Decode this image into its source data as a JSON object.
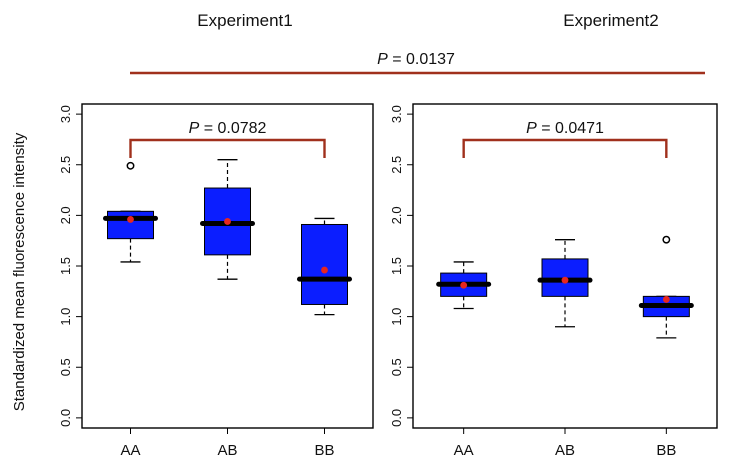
{
  "ylabel": "Standardized mean fluorescence intensity",
  "overall_comparison": {
    "label": "P = 0.0137",
    "p_value": 0.0137
  },
  "colors": {
    "box": "#0b1eff",
    "median": "#000000",
    "mean": "#e8261f",
    "bracket": "#a0301c"
  },
  "chart_data": [
    {
      "type": "box",
      "title": "Experiment1",
      "categories": [
        "AA",
        "AB",
        "BB"
      ],
      "yticks": [
        "0.0",
        "0.5",
        "1.0",
        "1.5",
        "2.0",
        "2.5",
        "3.0"
      ],
      "ylim": [
        -0.1,
        3.1
      ],
      "boxes": [
        {
          "category": "AA",
          "whisker_low": 1.54,
          "q1": 1.77,
          "median": 1.97,
          "q3": 2.04,
          "whisker_high": 2.04,
          "mean": 1.96,
          "outliers": [
            2.49
          ]
        },
        {
          "category": "AB",
          "whisker_low": 1.37,
          "q1": 1.61,
          "median": 1.92,
          "q3": 2.27,
          "whisker_high": 2.55,
          "mean": 1.94,
          "outliers": []
        },
        {
          "category": "BB",
          "whisker_low": 1.02,
          "q1": 1.12,
          "median": 1.37,
          "q3": 1.91,
          "whisker_high": 1.97,
          "mean": 1.46,
          "outliers": []
        }
      ],
      "comparison": {
        "label": "P = 0.0782",
        "p_value": 0.0782,
        "from": "AA",
        "to": "BB"
      }
    },
    {
      "type": "box",
      "title": "Experiment2",
      "categories": [
        "AA",
        "AB",
        "BB"
      ],
      "yticks": [
        "0.0",
        "0.5",
        "1.0",
        "1.5",
        "2.0",
        "2.5",
        "3.0"
      ],
      "ylim": [
        -0.1,
        3.1
      ],
      "boxes": [
        {
          "category": "AA",
          "whisker_low": 1.08,
          "q1": 1.2,
          "median": 1.32,
          "q3": 1.43,
          "whisker_high": 1.54,
          "mean": 1.31,
          "outliers": []
        },
        {
          "category": "AB",
          "whisker_low": 0.9,
          "q1": 1.2,
          "median": 1.36,
          "q3": 1.57,
          "whisker_high": 1.76,
          "mean": 1.36,
          "outliers": []
        },
        {
          "category": "BB",
          "whisker_low": 0.79,
          "q1": 1.0,
          "median": 1.11,
          "q3": 1.2,
          "whisker_high": 1.2,
          "mean": 1.17,
          "outliers": [
            1.76
          ]
        }
      ],
      "comparison": {
        "label": "P = 0.0471",
        "p_value": 0.0471,
        "from": "AA",
        "to": "BB"
      }
    }
  ]
}
